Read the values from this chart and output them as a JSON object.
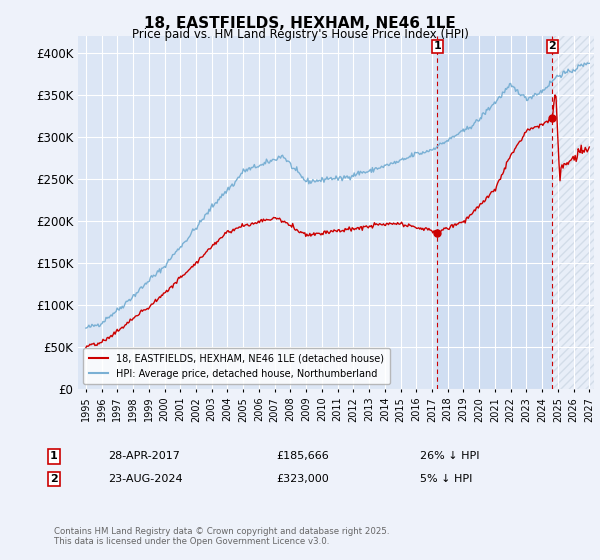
{
  "title": "18, EASTFIELDS, HEXHAM, NE46 1LE",
  "subtitle": "Price paid vs. HM Land Registry's House Price Index (HPI)",
  "background_color": "#eef2fa",
  "plot_background": "#dce6f5",
  "ylim": [
    0,
    420000
  ],
  "yticks": [
    0,
    50000,
    100000,
    150000,
    200000,
    250000,
    300000,
    350000,
    400000
  ],
  "ytick_labels": [
    "£0",
    "£50K",
    "£100K",
    "£150K",
    "£200K",
    "£250K",
    "£300K",
    "£350K",
    "£400K"
  ],
  "legend_entries": [
    "18, EASTFIELDS, HEXHAM, NE46 1LE (detached house)",
    "HPI: Average price, detached house, Northumberland"
  ],
  "legend_colors": [
    "#cc0000",
    "#7ab0d4"
  ],
  "sale1_date": "28-APR-2017",
  "sale1_price": 185666,
  "sale1_label": "£185,666",
  "sale1_hpi": "26% ↓ HPI",
  "sale2_date": "23-AUG-2024",
  "sale2_price": 323000,
  "sale2_label": "£323,000",
  "sale2_hpi": "5% ↓ HPI",
  "footnote": "Contains HM Land Registry data © Crown copyright and database right 2025.\nThis data is licensed under the Open Government Licence v3.0.",
  "sale1_year": 2017.33,
  "sale2_year": 2024.65,
  "red_line_color": "#cc0000",
  "blue_line_color": "#7ab0d4",
  "vline_color": "#cc0000",
  "xlim_start": 1995.0,
  "xlim_end": 2027.0
}
